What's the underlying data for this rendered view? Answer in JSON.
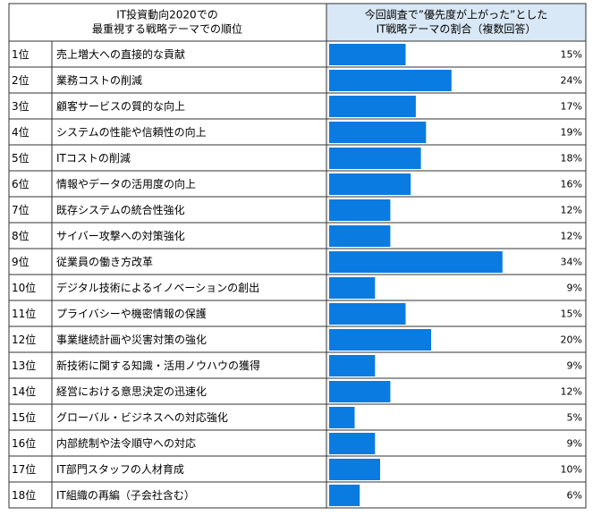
{
  "chart_data": {
    "type": "bar",
    "header_left": [
      "IT投資動向2020での",
      "最重視する戦略テーマでの順位"
    ],
    "header_right": [
      "今回調査で”優先度が上がった”とした",
      "IT戦略テーマの割合（複数回答）"
    ],
    "ranks": [
      "1位",
      "2位",
      "3位",
      "4位",
      "5位",
      "6位",
      "7位",
      "8位",
      "9位",
      "10位",
      "11位",
      "12位",
      "13位",
      "14位",
      "15位",
      "16位",
      "17位",
      "18位"
    ],
    "categories": [
      "売上増大への直接的な貢献",
      "業務コストの削減",
      "顧客サービスの質的な向上",
      "システムの性能や信頼性の向上",
      "ITコストの削減",
      "情報やデータの活用度の向上",
      "既存システムの統合性強化",
      "サイバー攻撃への対策強化",
      "従業員の働き方改革",
      "デジタル技術によるイノベーションの創出",
      "プライバシーや機密情報の保護",
      "事業継続計画や災害対策の強化",
      "新技術に関する知識・活用ノウハウの獲得",
      "経営における意思決定の迅速化",
      "グローバル・ビジネスへの対応強化",
      "内部統制や法令順守への対応",
      "IT部門スタッフの人材育成",
      "IT組織の再編（子会社含む）"
    ],
    "values": [
      15,
      24,
      17,
      19,
      18,
      16,
      12,
      12,
      34,
      9,
      15,
      20,
      9,
      12,
      5,
      9,
      10,
      6
    ],
    "value_labels": [
      "15%",
      "24%",
      "17%",
      "19%",
      "18%",
      "16%",
      "12%",
      "12%",
      "34%",
      "9%",
      "15%",
      "20%",
      "9%",
      "12%",
      "5%",
      "9%",
      "10%",
      "6%"
    ],
    "color": "#0a7be0"
  }
}
